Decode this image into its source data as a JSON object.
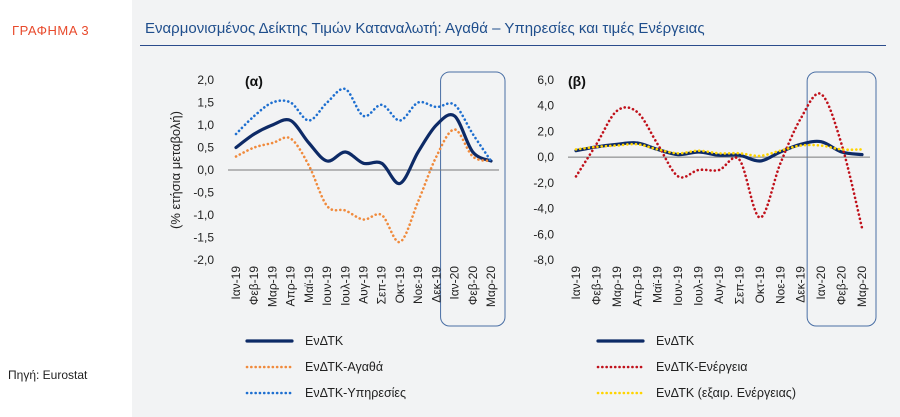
{
  "graph_label": "ΓΡΑΦΗΜΑ 3",
  "title": "Εναρμονισμένος Δείκτης Τιμών Καταναλωτή: Αγαθά – Υπηρεσίες και τιμές Ενέργειας",
  "source": "Πηγή: Eurostat",
  "colors": {
    "navy": "#0d2a66",
    "orange": "#f08a3c",
    "blue_dots": "#1e6fd0",
    "red_dots": "#c0111b",
    "yellow_dots": "#ffd400",
    "highlight_box": "#4a6fa5"
  },
  "chart_data": [
    {
      "type": "line",
      "panel_label": "(α)",
      "ylabel": "(% ετήσια μεταβολή)",
      "categories": [
        "Ιαν-19",
        "Φεβ-19",
        "Μαρ-19",
        "Απρ-19",
        "Μαϊ-19",
        "Ιουν-19",
        "Ιουλ-19",
        "Αυγ-19",
        "Σεπ-19",
        "Οκτ-19",
        "Νοε-19",
        "Δεκ-19",
        "Ιαν-20",
        "Φεβ-20",
        "Μαρ-20"
      ],
      "ylim": [
        -2.0,
        2.0
      ],
      "yticks": [
        "2,0",
        "1,5",
        "1,0",
        "0,5",
        "0,0",
        "-0,5",
        "-1,0",
        "-1,5",
        "-2,0"
      ],
      "yticks_values": [
        2.0,
        1.5,
        1.0,
        0.5,
        0.0,
        -0.5,
        -1.0,
        -1.5,
        -2.0
      ],
      "highlight_categories": [
        "Ιαν-20",
        "Μαρ-20"
      ],
      "series": [
        {
          "name": "ΕνΔΤΚ",
          "style": "solid",
          "color": "#0d2a66",
          "values": [
            0.5,
            0.8,
            1.0,
            1.1,
            0.6,
            0.2,
            0.4,
            0.15,
            0.15,
            -0.3,
            0.4,
            1.0,
            1.2,
            0.4,
            0.2
          ]
        },
        {
          "name": "ΕνΔΤΚ-Αγαθά",
          "style": "dotted",
          "color": "#f08a3c",
          "values": [
            0.3,
            0.5,
            0.6,
            0.7,
            0.1,
            -0.8,
            -0.9,
            -1.1,
            -1.0,
            -1.6,
            -0.7,
            0.3,
            0.9,
            0.3,
            0.2
          ]
        },
        {
          "name": "ΕνΔΤΚ-Υπηρεσίες",
          "style": "dotted",
          "color": "#1e6fd0",
          "values": [
            0.8,
            1.2,
            1.5,
            1.5,
            1.1,
            1.5,
            1.8,
            1.2,
            1.45,
            1.1,
            1.5,
            1.4,
            1.45,
            0.8,
            0.2
          ]
        }
      ]
    },
    {
      "type": "line",
      "panel_label": "(β)",
      "ylabel": "",
      "categories": [
        "Ιαν-19",
        "Φεβ-19",
        "Μαρ-19",
        "Απρ-19",
        "Μαϊ-19",
        "Ιουν-19",
        "Ιουλ-19",
        "Αυγ-19",
        "Σεπ-19",
        "Οκτ-19",
        "Νοε-19",
        "Δεκ-19",
        "Ιαν-20",
        "Φεβ-20",
        "Μαρ-20"
      ],
      "ylim": [
        -8.0,
        6.0
      ],
      "yticks": [
        "6,0",
        "4,0",
        "2,0",
        "0,0",
        "-2,0",
        "-4,0",
        "-6,0",
        "-8,0"
      ],
      "yticks_values": [
        6.0,
        4.0,
        2.0,
        0.0,
        -2.0,
        -4.0,
        -6.0,
        -8.0
      ],
      "highlight_categories": [
        "Ιαν-20",
        "Μαρ-20"
      ],
      "series": [
        {
          "name": "ΕνΔΤΚ",
          "style": "solid",
          "color": "#0d2a66",
          "values": [
            0.5,
            0.8,
            1.0,
            1.1,
            0.6,
            0.2,
            0.4,
            0.15,
            0.15,
            -0.3,
            0.4,
            1.0,
            1.2,
            0.4,
            0.2
          ]
        },
        {
          "name": "ΕνΔΤΚ-Ενέργεια",
          "style": "dotted",
          "color": "#c0111b",
          "values": [
            -1.5,
            1.0,
            3.6,
            3.5,
            1.0,
            -1.5,
            -1.0,
            -1.0,
            -0.2,
            -4.7,
            -0.5,
            3.0,
            4.9,
            1.0,
            -5.5
          ]
        },
        {
          "name": "ΕνΔΤΚ  (εξαιρ. Ενέργειας)",
          "style": "dotted",
          "color": "#ffd400",
          "values": [
            0.6,
            0.8,
            0.9,
            1.0,
            0.6,
            0.3,
            0.5,
            0.3,
            0.3,
            0.1,
            0.5,
            0.9,
            0.9,
            0.6,
            0.6
          ]
        }
      ]
    }
  ]
}
